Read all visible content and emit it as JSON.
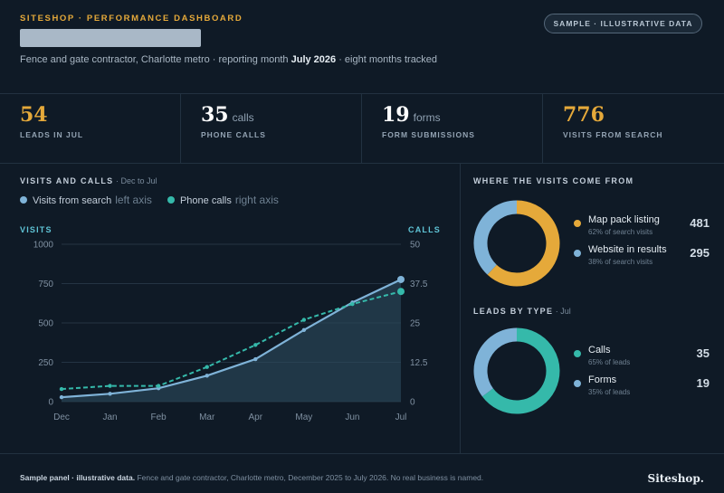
{
  "header": {
    "brand": "SITESHOP · PERFORMANCE DASHBOARD",
    "subtitle_pre": "Fence and gate contractor, Charlotte metro · reporting month ",
    "subtitle_month": "July 2026",
    "subtitle_post": " · eight months tracked",
    "badge": "SAMPLE · ILLUSTRATIVE DATA"
  },
  "kpis": [
    {
      "value": "54",
      "unit": "",
      "label": "LEADS IN JUL",
      "color": "#e5a93a"
    },
    {
      "value": "35",
      "unit": "calls",
      "label": "PHONE CALLS",
      "color": "#ffffff"
    },
    {
      "value": "19",
      "unit": "forms",
      "label": "FORM SUBMISSIONS",
      "color": "#ffffff"
    },
    {
      "value": "776",
      "unit": "",
      "label": "VISITS FROM SEARCH",
      "color": "#e5a93a"
    }
  ],
  "chart_panel": {
    "title": "VISITS AND CALLS",
    "title_note": " · Dec to Jul",
    "legend": [
      {
        "name": "Visits from search",
        "note": "left axis",
        "color": "#7fb3d8"
      },
      {
        "name": "Phone calls",
        "note": "right axis",
        "color": "#35b9aa"
      }
    ]
  },
  "chart_data": {
    "type": "line",
    "x": [
      "Dec",
      "Jan",
      "Feb",
      "Mar",
      "Apr",
      "May",
      "Jun",
      "Jul"
    ],
    "series": [
      {
        "name": "Visits from search",
        "axis": "left",
        "values": [
          28,
          50,
          85,
          165,
          270,
          455,
          630,
          776
        ],
        "color": "#7fb3d8",
        "style": "solid",
        "fill": true
      },
      {
        "name": "Phone calls",
        "axis": "right",
        "values": [
          4,
          5,
          5,
          11,
          18,
          26,
          31,
          35
        ],
        "color": "#35b9aa",
        "style": "dashed"
      }
    ],
    "ylabel_left": "VISITS",
    "ylabel_right": "CALLS",
    "ylim_left": [
      0,
      1000
    ],
    "yticks_left": [
      "0",
      "250",
      "500",
      "750",
      "1000"
    ],
    "ylim_right": [
      0,
      50
    ],
    "yticks_right": [
      "0",
      "12.5",
      "25",
      "37.5",
      "50"
    ],
    "grid": true
  },
  "sources_panel": {
    "title": "WHERE THE VISITS COME FROM",
    "items": [
      {
        "name": "Map pack listing",
        "sub": "62% of search visits",
        "value": 481,
        "display": "481",
        "color": "#e5a93a"
      },
      {
        "name": "Website in results",
        "sub": "38% of search visits",
        "value": 295,
        "display": "295",
        "color": "#7fb3d8"
      }
    ]
  },
  "leads_panel": {
    "title": "LEADS BY TYPE",
    "title_note": " · Jul",
    "items": [
      {
        "name": "Calls",
        "sub": "65% of leads",
        "value": 35,
        "display": "35",
        "color": "#35b9aa"
      },
      {
        "name": "Forms",
        "sub": "35% of leads",
        "value": 19,
        "display": "19",
        "color": "#7fb3d8"
      }
    ]
  },
  "footer": {
    "bold": "Sample panel · illustrative data.",
    "text": " Fence and gate contractor, Charlotte metro, December 2025 to July 2026. No real business is named.",
    "logo": "Siteshop."
  }
}
